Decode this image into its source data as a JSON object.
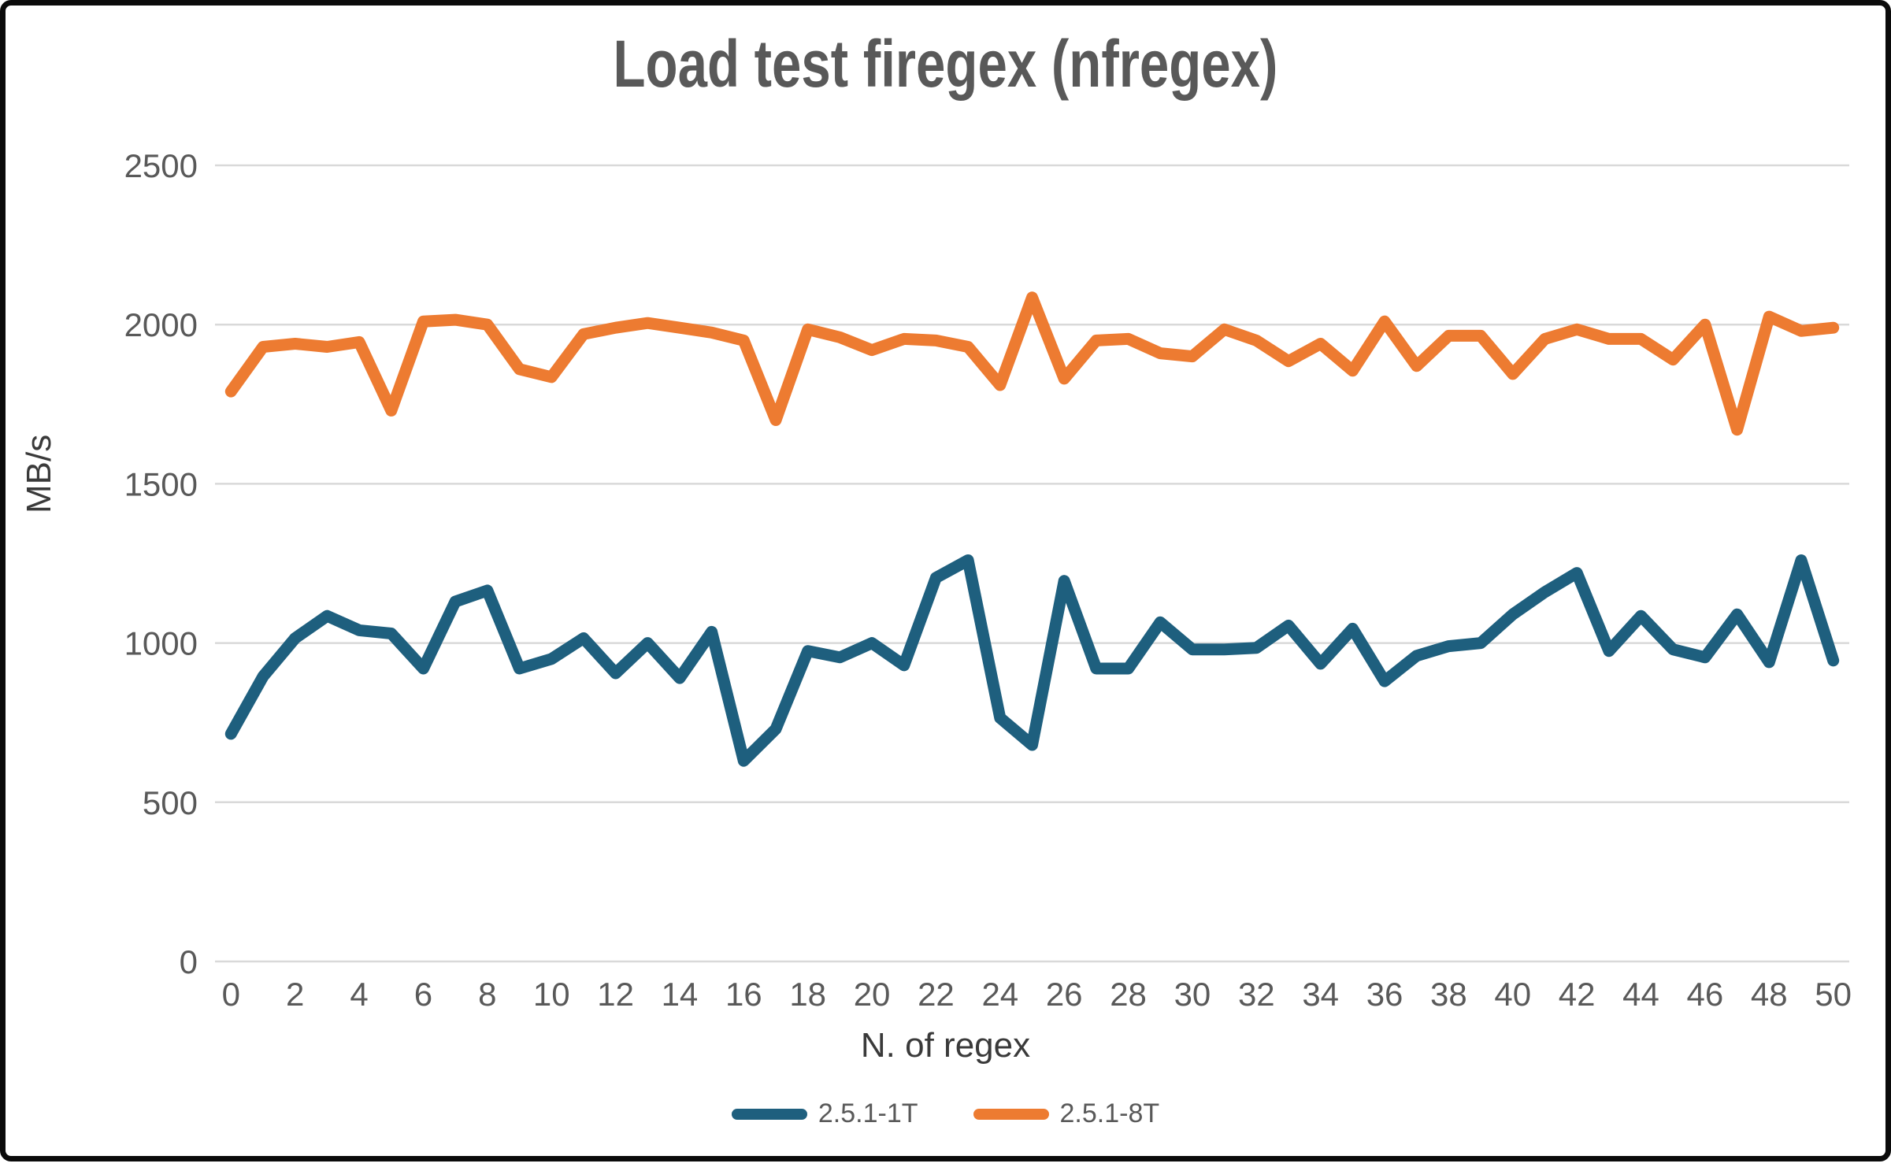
{
  "title": {
    "text": "Load test firegex (nfregex)",
    "color": "#595959"
  },
  "y_axis": {
    "title": "MB/s",
    "title_color": "#3a3a3a",
    "tick_labels": [
      "0",
      "500",
      "1000",
      "1500",
      "2000",
      "2500"
    ],
    "tick_values": [
      0,
      500,
      1000,
      1500,
      2000,
      2500
    ],
    "tick_color": "#595959",
    "min": 0,
    "max": 2500
  },
  "x_axis": {
    "title": "N. of regex",
    "title_color": "#3a3a3a",
    "tick_labels": [
      "0",
      "2",
      "4",
      "6",
      "8",
      "10",
      "12",
      "14",
      "16",
      "18",
      "20",
      "22",
      "24",
      "26",
      "28",
      "30",
      "32",
      "34",
      "36",
      "38",
      "40",
      "42",
      "44",
      "46",
      "48",
      "50"
    ],
    "tick_color": "#595959"
  },
  "legend": [
    {
      "label": "2.5.1-1T",
      "color": "#1E5F7E"
    },
    {
      "label": "2.5.1-8T",
      "color": "#ED7B31"
    }
  ],
  "style_colors": {
    "grid": "#D9D9D9",
    "frame_border": "#0B0B0B",
    "background": "#FFFFFF",
    "series_1t": "#1E5F7E",
    "series_8t": "#ED7B31"
  },
  "chart_data": {
    "type": "line",
    "title": "Load test firegex (nfregex)",
    "xlabel": "N. of regex",
    "ylabel": "MB/s",
    "ylim": [
      0,
      2500
    ],
    "xlim": [
      0,
      50
    ],
    "grid": true,
    "legend_position": "bottom",
    "x": [
      0,
      1,
      2,
      3,
      4,
      5,
      6,
      7,
      8,
      9,
      10,
      11,
      12,
      13,
      14,
      15,
      16,
      17,
      18,
      19,
      20,
      21,
      22,
      23,
      24,
      25,
      26,
      27,
      28,
      29,
      30,
      31,
      32,
      33,
      34,
      35,
      36,
      37,
      38,
      39,
      40,
      41,
      42,
      43,
      44,
      45,
      46,
      47,
      48,
      49,
      50
    ],
    "series": [
      {
        "name": "2.5.1-1T",
        "color": "#1E5F7E",
        "values": [
          715,
          895,
          1015,
          1085,
          1040,
          1030,
          920,
          1130,
          1165,
          920,
          950,
          1015,
          905,
          1000,
          890,
          1035,
          630,
          730,
          975,
          955,
          1000,
          930,
          1205,
          1260,
          765,
          680,
          1195,
          920,
          920,
          1065,
          980,
          980,
          985,
          1055,
          935,
          1045,
          880,
          960,
          990,
          1000,
          1090,
          1160,
          1220,
          975,
          1085,
          980,
          955,
          1090,
          940,
          1260,
          945
        ]
      },
      {
        "name": "2.5.1-8T",
        "color": "#ED7B31",
        "values": [
          1790,
          1930,
          1940,
          1930,
          1945,
          1730,
          2010,
          2015,
          2000,
          1860,
          1835,
          1970,
          1990,
          2005,
          1990,
          1975,
          1950,
          1700,
          1985,
          1960,
          1920,
          1955,
          1950,
          1930,
          1810,
          2085,
          1830,
          1950,
          1955,
          1910,
          1900,
          1985,
          1950,
          1885,
          1940,
          1855,
          2010,
          1870,
          1965,
          1965,
          1845,
          1955,
          1985,
          1955,
          1955,
          1890,
          2000,
          1670,
          2025,
          1980,
          1990
        ]
      }
    ]
  }
}
